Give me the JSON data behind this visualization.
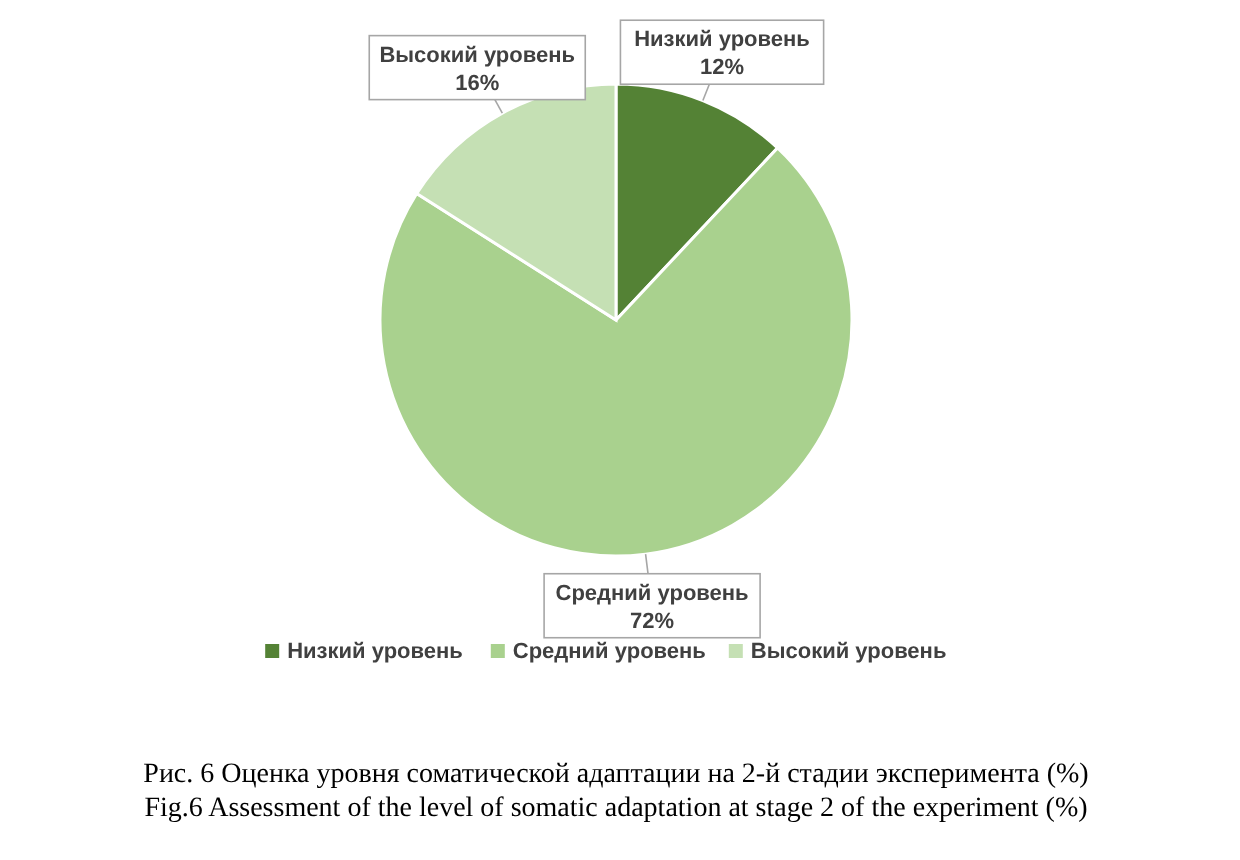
{
  "chart_data": {
    "type": "pie",
    "categories": [
      "Низкий уровень",
      "Средний уровень",
      "Высокий уровень"
    ],
    "values": [
      12,
      72,
      16
    ],
    "colors": [
      "#548235",
      "#a9d18e",
      "#c5e0b4"
    ],
    "value_labels": [
      "12%",
      "72%",
      "16%"
    ],
    "legend": "bottom",
    "annotations": [
      "Рис. 6 Оценка уровня соматической адаптации на 2-й стадии эксперимента (%)",
      "Fig.6 Assessment of the level of somatic adaptation at stage 2 of the experiment (%)"
    ]
  }
}
